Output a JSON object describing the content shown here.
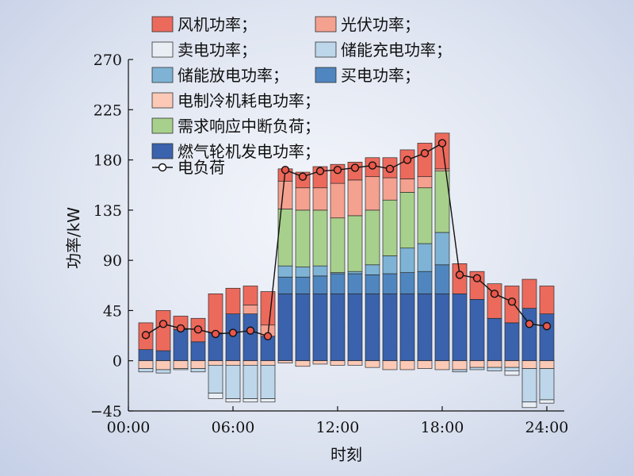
{
  "chart_data": {
    "type": "bar",
    "stacked": true,
    "xlabel": "时刻",
    "ylabel": "功率/kW",
    "ylim": [
      -45,
      270
    ],
    "yticks": [
      -45,
      0,
      45,
      90,
      135,
      180,
      225,
      270
    ],
    "xlim": [
      0,
      25
    ],
    "xticks": [
      0,
      6,
      12,
      18,
      24
    ],
    "xtick_labels": [
      "00:00",
      "06:00",
      "12:00",
      "18:00",
      "24:00"
    ],
    "grid": false,
    "legend_position": "top-left",
    "hours": [
      1,
      2,
      3,
      4,
      5,
      6,
      7,
      8,
      9,
      10,
      11,
      12,
      13,
      14,
      15,
      16,
      17,
      18,
      19,
      20,
      21,
      22,
      23,
      24
    ],
    "series": [
      {
        "name": "燃气轮机发电功率；",
        "key": "gas",
        "color": "#3a62ad",
        "group": "positive",
        "values": [
          10,
          9,
          28,
          17,
          25,
          42,
          42,
          22,
          60,
          60,
          60,
          60,
          60,
          60,
          60,
          60,
          60,
          60,
          60,
          55,
          38,
          34,
          47,
          42
        ]
      },
      {
        "name": "买电功率；",
        "key": "buy",
        "color": "#4f86bf",
        "group": "positive",
        "values": [
          0,
          0,
          0,
          0,
          0,
          0,
          0,
          0,
          15,
          15,
          16,
          18,
          18,
          17,
          18,
          19,
          20,
          26,
          0,
          0,
          0,
          0,
          0,
          0
        ]
      },
      {
        "name": "储能放电功率；",
        "key": "discharge",
        "color": "#7eb3d5",
        "group": "positive",
        "values": [
          0,
          0,
          0,
          0,
          0,
          0,
          0,
          0,
          10,
          9,
          9,
          1,
          2,
          9,
          16,
          22,
          25,
          29,
          0,
          0,
          0,
          0,
          0,
          0
        ]
      },
      {
        "name": "需求响应中断负荷；",
        "key": "dr",
        "color": "#a8d08d",
        "group": "positive",
        "values": [
          0,
          0,
          0,
          0,
          0,
          0,
          0,
          0,
          51,
          51,
          50,
          49,
          50,
          49,
          50,
          50,
          50,
          55,
          0,
          0,
          0,
          0,
          0,
          0
        ]
      },
      {
        "name": "光伏功率；",
        "key": "pv",
        "color": "#f4a190",
        "group": "positive",
        "values": [
          0,
          0,
          0,
          0,
          0,
          0,
          8,
          10,
          25,
          20,
          20,
          31,
          32,
          30,
          20,
          12,
          10,
          2,
          0,
          0,
          0,
          0,
          0,
          0
        ]
      },
      {
        "name": "风机功率；",
        "key": "wind",
        "color": "#ec6a5c",
        "group": "positive",
        "values": [
          24,
          36,
          12,
          21,
          35,
          23,
          17,
          30,
          11,
          14,
          19,
          17,
          16,
          17,
          18,
          26,
          30,
          32,
          27,
          25,
          31,
          33,
          26,
          25
        ]
      },
      {
        "name": "电制冷机耗电功率；",
        "key": "chiller",
        "color": "#fbc9b6",
        "group": "negative",
        "values": [
          -7,
          -8,
          -7,
          -7,
          -4,
          -4,
          -4,
          -4,
          -2,
          -5,
          -3,
          -4,
          -4,
          -6,
          -8,
          -8,
          -7,
          -8,
          -8,
          -6,
          -6,
          -6,
          -7,
          -7
        ]
      },
      {
        "name": "储能充电功率；",
        "key": "charge",
        "color": "#bed6ea",
        "group": "negative",
        "values": [
          -3,
          -3,
          0,
          -3,
          -25,
          -30,
          -30,
          -30,
          0,
          0,
          0,
          0,
          0,
          0,
          0,
          0,
          0,
          0,
          -2,
          -2,
          -3,
          -3,
          -30,
          -28
        ]
      },
      {
        "name": "卖电功率；",
        "key": "sell",
        "color": "#e9eef5",
        "group": "negative",
        "values": [
          0,
          0,
          -1,
          0,
          -5,
          -3,
          -3,
          -3,
          0,
          0,
          0,
          0,
          0,
          0,
          0,
          0,
          0,
          0,
          0,
          0,
          0,
          -4,
          -5,
          -3
        ]
      }
    ],
    "load": {
      "name": "电负荷",
      "color": "#111111",
      "marker_fill": "#e8574a",
      "values": [
        23,
        33,
        29,
        28,
        24,
        25,
        27,
        22,
        171,
        165,
        170,
        171,
        173,
        175,
        172,
        180,
        186,
        195,
        77,
        74,
        60,
        53,
        33,
        31
      ]
    },
    "legend": {
      "wind": "风机功率；",
      "pv": "光伏功率；",
      "sell": "卖电功率；",
      "charge": "储能充电功率；",
      "discharge": "储能放电功率；",
      "buy": "买电功率；",
      "chiller": "电制冷机耗电功率；",
      "dr": "需求响应中断负荷；",
      "gas": "燃气轮机发电功率；",
      "load": "电负荷"
    }
  }
}
